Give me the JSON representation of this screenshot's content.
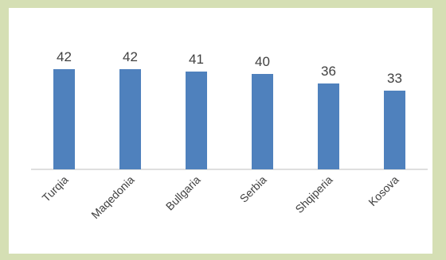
{
  "colors": {
    "background": "#d5dfb4",
    "plot": "#ffffff",
    "bar": "#4f81bd",
    "axis": "#bfbfbf",
    "text": "#404040"
  },
  "chart_data": {
    "type": "bar",
    "categories": [
      "Turqia",
      "Maqedonia",
      "Bullgaria",
      "Serbia",
      "Shqiperia",
      "Kosova"
    ],
    "values": [
      42,
      42,
      41,
      40,
      36,
      33
    ],
    "data_labels": [
      "42",
      "42",
      "41",
      "40",
      "36",
      "33"
    ],
    "ylim": [
      0,
      50
    ],
    "grid": false,
    "legend": "none",
    "title": "",
    "xlabel": "",
    "ylabel": ""
  }
}
